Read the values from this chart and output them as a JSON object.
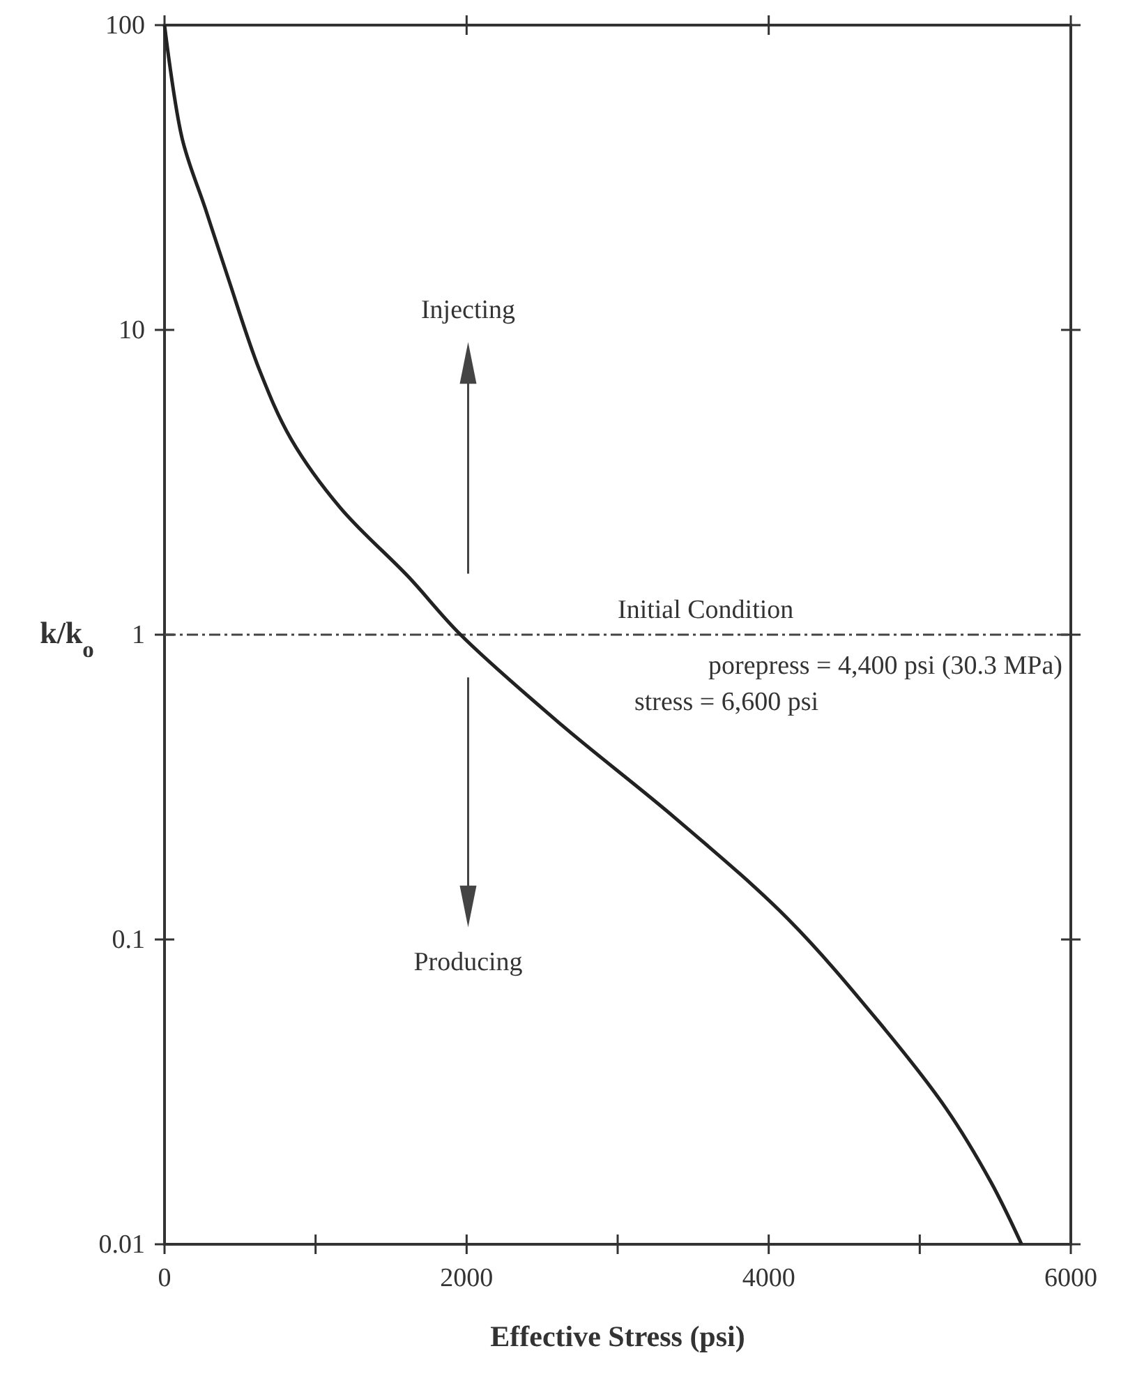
{
  "chart_data": {
    "type": "line",
    "xlabel": "Effective Stress (psi)",
    "ylabel": "k/k$_{o}$",
    "x": [
      0,
      117,
      269,
      419,
      628,
      837,
      1166,
      1614,
      1960,
      2630,
      3378,
      4126,
      4724,
      5172,
      5471,
      5674
    ],
    "series": [
      {
        "color": "#222222",
        "values": [
          100,
          42.4,
          25.1,
          14.9,
          7.4,
          4.39,
          2.6,
          1.55,
          1.0,
          0.505,
          0.251,
          0.117,
          0.054,
          0.028,
          0.016,
          0.01
        ]
      }
    ],
    "log": "y",
    "xlim": [
      0,
      6000
    ],
    "ylim": [
      0.01,
      100
    ],
    "xticks": [
      0,
      {
        "value": 1000,
        "label": null
      },
      2000,
      {
        "value": 3000,
        "label": null
      },
      4000,
      {
        "value": 5000,
        "label": null
      },
      6000
    ],
    "yticks": [
      0.01,
      0.1,
      1,
      10,
      100
    ],
    "grid": false,
    "line_style": "solid",
    "ref_lines": [
      {
        "axis": "y",
        "value": 1,
        "label": "Initial Condition",
        "line_style": "dashdot",
        "color": "#444444"
      }
    ],
    "annotations": [
      "Injecting",
      "Producing",
      "porepress = 4,400 psi (30.3 MPa)",
      "stress = 6,600 psi"
    ]
  }
}
